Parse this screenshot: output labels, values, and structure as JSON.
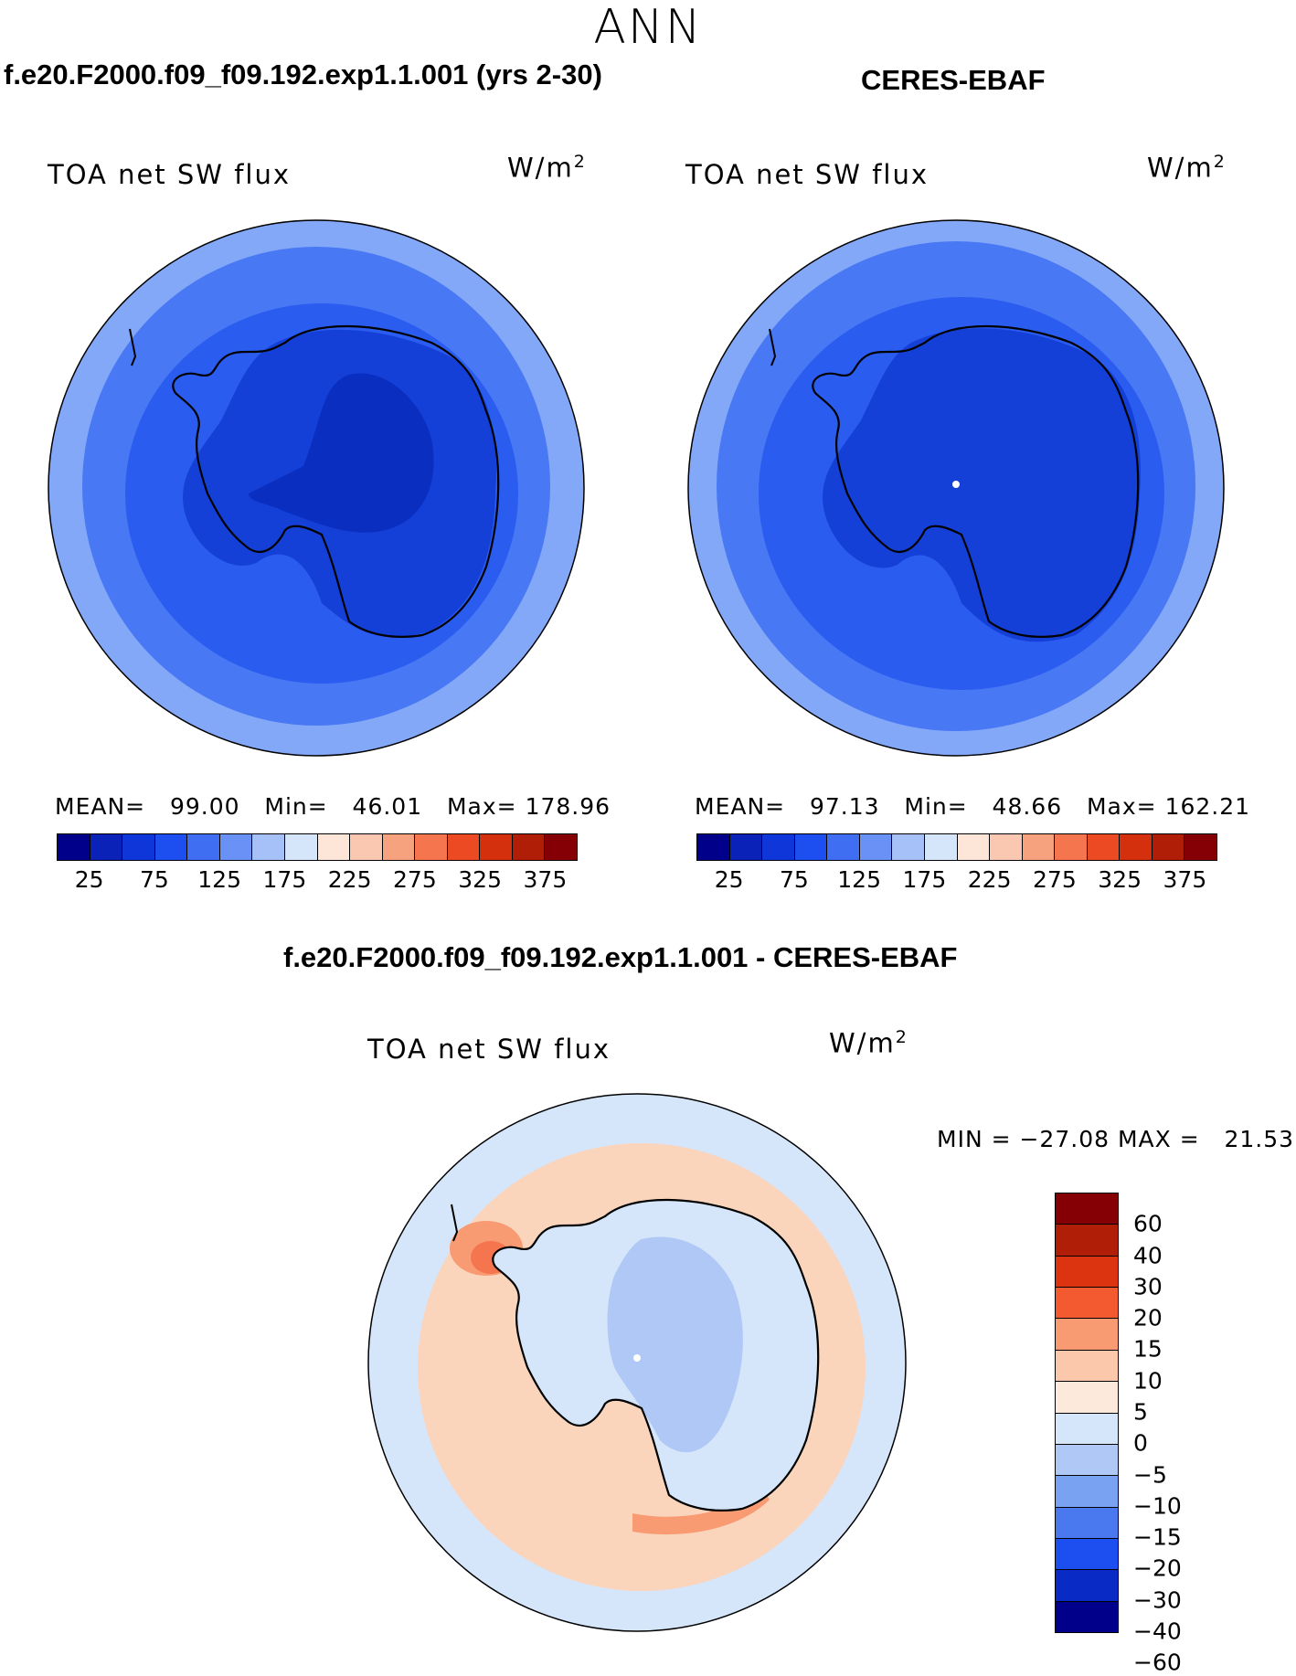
{
  "season": "ANN",
  "panels": {
    "model": {
      "title": "f.e20.F2000.f09_f09.192.exp1.1.001 (yrs 2-30)",
      "variable": "TOA net SW flux",
      "units_base": "W/m",
      "units_exp": "2",
      "stats": {
        "mean_label": "MEAN=",
        "mean": "99.00",
        "min_label": "Min=",
        "min": "46.01",
        "max_label": "Max=",
        "max": "178.96"
      }
    },
    "obs": {
      "title": "CERES-EBAF",
      "variable": "TOA net SW flux",
      "units_base": "W/m",
      "units_exp": "2",
      "stats": {
        "mean_label": "MEAN=",
        "mean": "97.13",
        "min_label": "Min=",
        "min": "48.66",
        "max_label": "Max=",
        "max": "162.21"
      }
    },
    "diff": {
      "title": "f.e20.F2000.f09_f09.192.exp1.1.001 - CERES-EBAF",
      "variable": "TOA net SW flux",
      "units_base": "W/m",
      "units_exp": "2",
      "minmax": "MIN = −27.08 MAX =   21.53"
    }
  },
  "colorbar_abs": {
    "colors": [
      "#00008a",
      "#0a22b8",
      "#0f36d8",
      "#1c4ef0",
      "#3f6ef2",
      "#6a92f6",
      "#a6c0f8",
      "#d6e6fa",
      "#fde6d8",
      "#fac8b0",
      "#f7a27e",
      "#f4754e",
      "#ec4a22",
      "#d4300e",
      "#b01e08",
      "#840004"
    ],
    "tick_labels": [
      "25",
      "75",
      "125",
      "175",
      "225",
      "275",
      "325",
      "375"
    ]
  },
  "colorbar_diff": {
    "colors": [
      "#840004",
      "#b01e08",
      "#dc3410",
      "#f45a30",
      "#f89a72",
      "#fbc8ac",
      "#fde8dc",
      "#d6e6fa",
      "#b0c8f6",
      "#7aa2f2",
      "#4a78ee",
      "#1c4ef0",
      "#0a2ac6",
      "#00008a"
    ],
    "tick_labels": [
      "60",
      "40",
      "30",
      "20",
      "15",
      "10",
      "5",
      "0",
      "−5",
      "−10",
      "−15",
      "−20",
      "−30",
      "−40",
      "−60"
    ]
  },
  "map_colors": {
    "outer_abs": "#84a8f8",
    "mid_abs": "#4878f4",
    "inner_abs": "#2a5cf0",
    "ice_abs": "#1440d8",
    "core_abs": "#0a2ec0",
    "diff_ocean": "#fbd4bc",
    "diff_outer": "#d6e6fa",
    "diff_land": "#d6e6fa",
    "diff_interior": "#b0c8f6",
    "diff_hot": "#f4754e",
    "diff_warm": "#f89a72"
  }
}
